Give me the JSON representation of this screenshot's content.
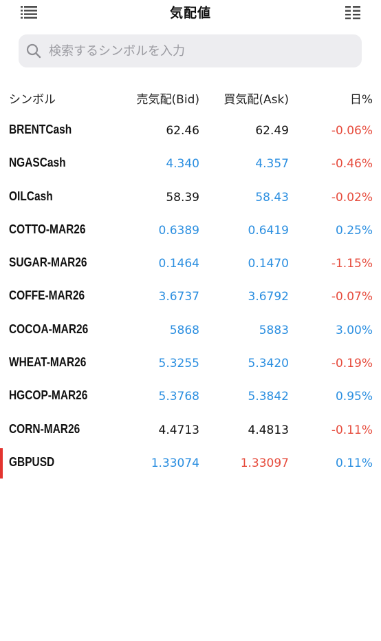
{
  "header": {
    "title": "気配値",
    "left_icon": "list-icon",
    "right_icon": "grid-list-icon"
  },
  "search": {
    "placeholder": "検索するシンボルを入力",
    "icon": "search-icon"
  },
  "columns": {
    "symbol": "シンボル",
    "bid": "売気配(Bid)",
    "ask": "買気配(Ask)",
    "day": "日%"
  },
  "colors": {
    "black": "#111111",
    "blue": "#2a8ee0",
    "red": "#e64a3b",
    "selected_marker": "#e3342f"
  },
  "rows": [
    {
      "symbol": "BRENTCash",
      "bid": "62.46",
      "ask": "62.49",
      "day": "-0.06%"
    },
    {
      "symbol": "NGASCash",
      "bid": "4.340",
      "ask": "4.357",
      "day": "-0.46%"
    },
    {
      "symbol": "OILCash",
      "bid": "58.39",
      "ask": "58.43",
      "day": "-0.02%"
    },
    {
      "symbol": "COTTO-MAR26",
      "bid": "0.6389",
      "ask": "0.6419",
      "day": "0.25%"
    },
    {
      "symbol": "SUGAR-MAR26",
      "bid": "0.1464",
      "ask": "0.1470",
      "day": "-1.15%"
    },
    {
      "symbol": "COFFE-MAR26",
      "bid": "3.6737",
      "ask": "3.6792",
      "day": "-0.07%"
    },
    {
      "symbol": "COCOA-MAR26",
      "bid": "5868",
      "ask": "5883",
      "day": "3.00%"
    },
    {
      "symbol": "WHEAT-MAR26",
      "bid": "5.3255",
      "ask": "5.3420",
      "day": "-0.19%"
    },
    {
      "symbol": "HGCOP-MAR26",
      "bid": "5.3768",
      "ask": "5.3842",
      "day": "0.95%"
    },
    {
      "symbol": "CORN-MAR26",
      "bid": "4.4713",
      "ask": "4.4813",
      "day": "-0.11%"
    },
    {
      "symbol": "GBPUSD",
      "bid": "1.33074",
      "ask": "1.33097",
      "day": "0.11%"
    }
  ]
}
